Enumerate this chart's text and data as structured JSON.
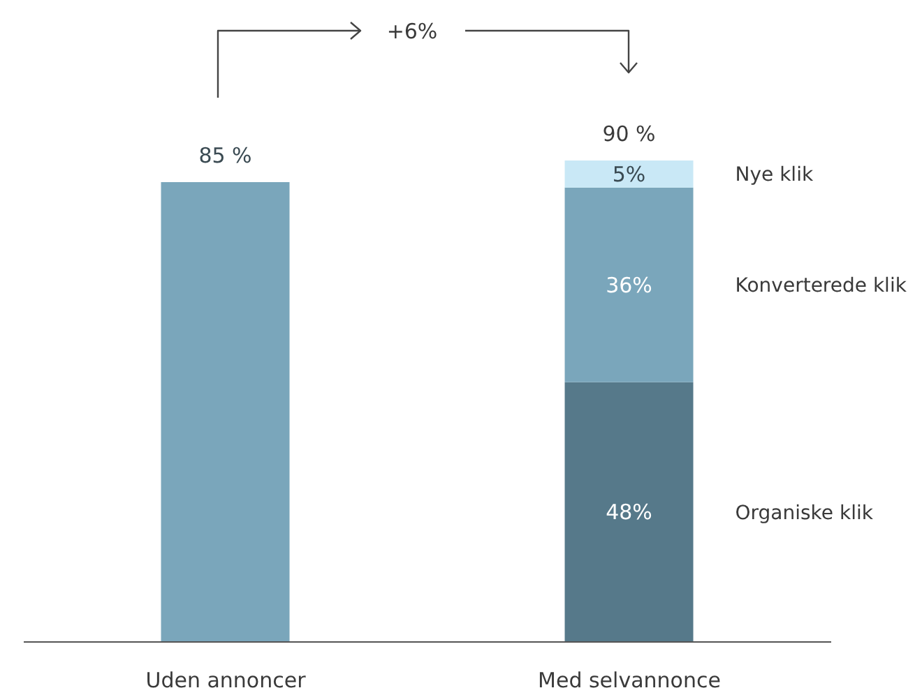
{
  "chart_data": {
    "type": "bar",
    "stacked": true,
    "categories": [
      "Uden annoncer",
      "Med selvannonce"
    ],
    "series": [
      {
        "color": "#7aa6bb",
        "values": [
          85,
          null
        ],
        "value_labels": [
          "85 %",
          null
        ]
      },
      {
        "name": "Organiske klik",
        "color": "#56798a",
        "values": [
          null,
          48
        ],
        "value_labels": [
          null,
          "48%"
        ]
      },
      {
        "name": "Konverterede klik",
        "color": "#7aa6bb",
        "values": [
          null,
          36
        ],
        "value_labels": [
          null,
          "36%"
        ]
      },
      {
        "name": "Nye klik",
        "color": "#c9e8f6",
        "values": [
          null,
          5
        ],
        "value_labels": [
          null,
          "5%"
        ]
      }
    ],
    "totals": [
      null,
      "90 %"
    ],
    "annotations": [
      "+6%"
    ],
    "legend": false,
    "grid": false
  }
}
